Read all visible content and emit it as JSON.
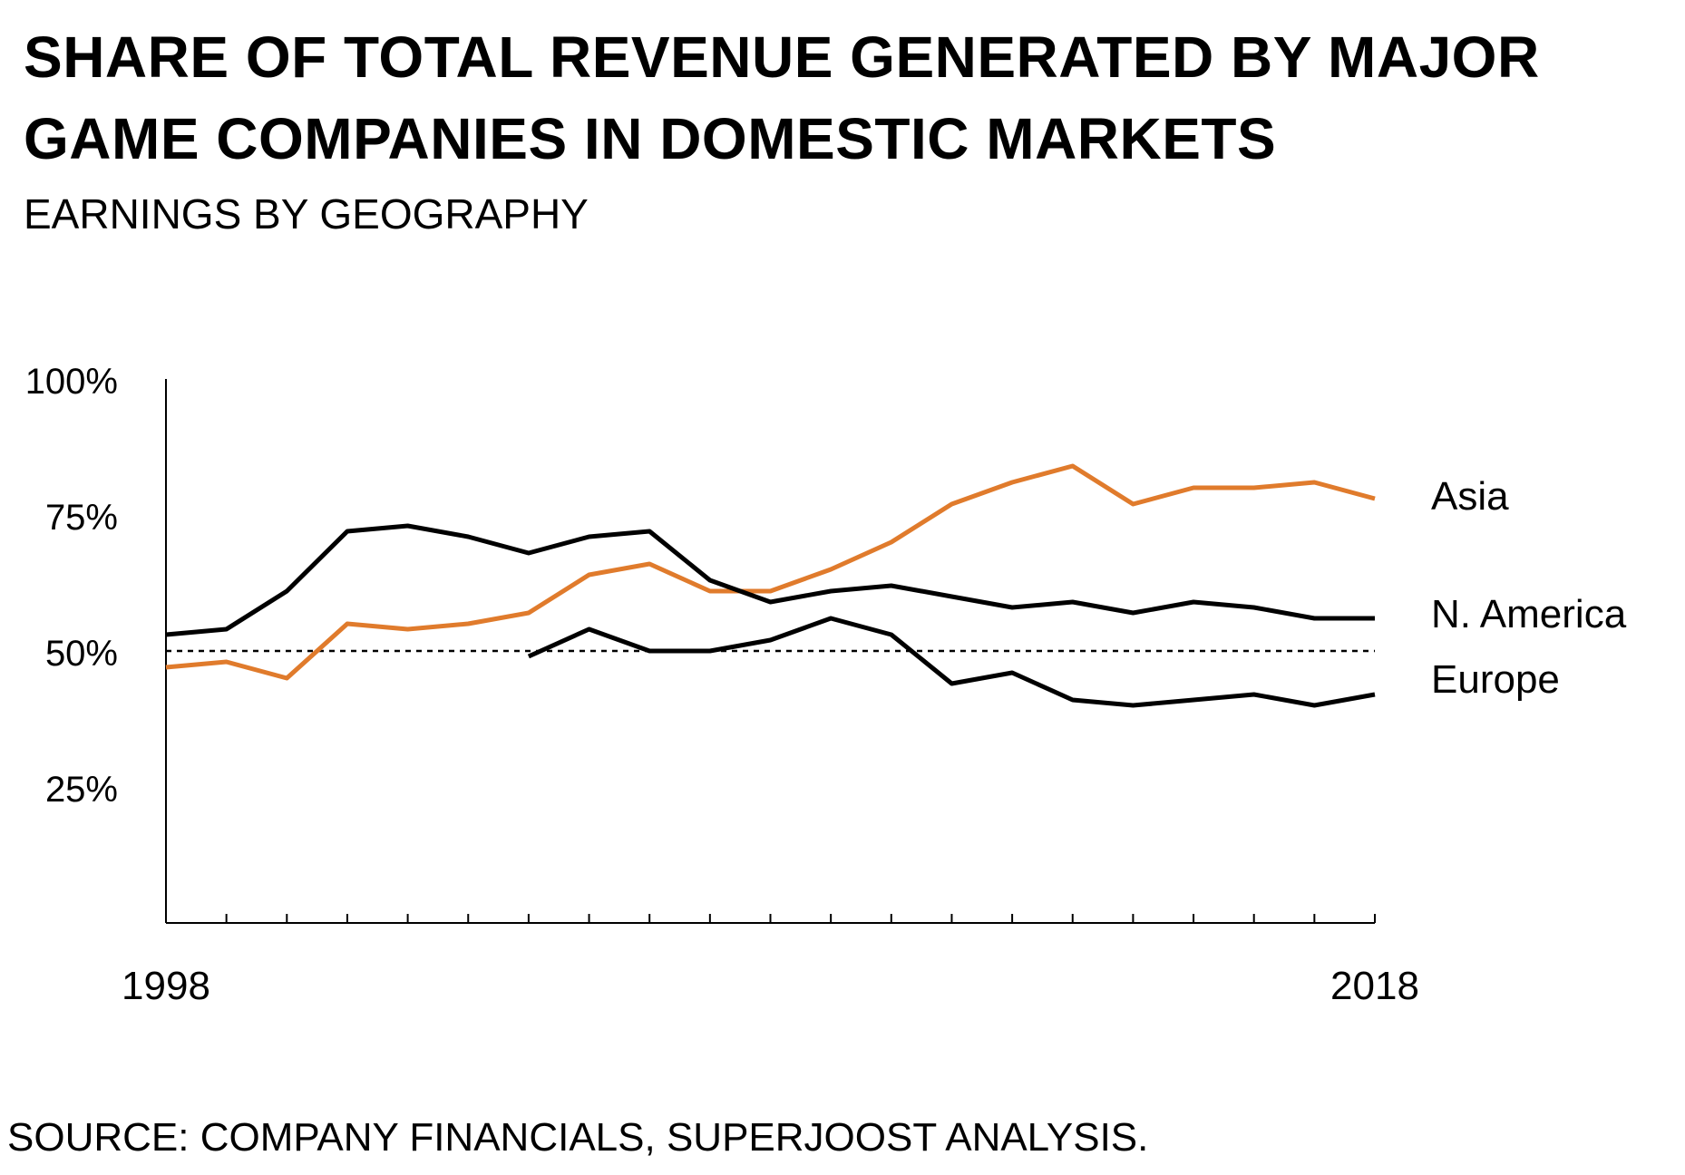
{
  "title": "SHARE OF TOTAL REVENUE GENERATED BY MAJOR GAME COMPANIES IN DOMESTIC MARKETS",
  "subtitle": "EARNINGS BY GEOGRAPHY",
  "source": "SOURCE: COMPANY FINANCIALS, SUPERJOOST ANALYSIS.",
  "colors": {
    "asia": "#E07B2C",
    "north_america": "#000000",
    "europe": "#000000",
    "reference": "#000000",
    "axis": "#000000"
  },
  "chart_data": {
    "type": "line",
    "x": [
      1998,
      1999,
      2000,
      2001,
      2002,
      2003,
      2004,
      2005,
      2006,
      2007,
      2008,
      2009,
      2010,
      2011,
      2012,
      2013,
      2014,
      2015,
      2016,
      2017,
      2018
    ],
    "xticklabels": [
      "1998",
      "2018"
    ],
    "yticks": [
      25,
      50,
      75,
      100
    ],
    "yticklabels": [
      "25%",
      "50%",
      "75%",
      "100%"
    ],
    "ylim": [
      0,
      100
    ],
    "xlim": [
      1998,
      2018
    ],
    "reference_line": 50,
    "grid": false,
    "legend": "inline labels at right end of lines",
    "series": [
      {
        "name": "Asia",
        "color": "#E07B2C",
        "values": [
          47,
          48,
          45,
          55,
          54,
          55,
          57,
          64,
          66,
          61,
          61,
          65,
          70,
          77,
          81,
          84,
          77,
          80,
          80,
          81,
          78
        ]
      },
      {
        "name": "N. America",
        "color": "#000000",
        "values": [
          53,
          54,
          61,
          72,
          73,
          71,
          68,
          71,
          72,
          63,
          59,
          61,
          62,
          60,
          58,
          59,
          57,
          59,
          58,
          56,
          56
        ]
      },
      {
        "name": "Europe",
        "color": "#000000",
        "values": [
          null,
          null,
          null,
          null,
          null,
          null,
          49,
          54,
          50,
          50,
          52,
          56,
          53,
          44,
          46,
          41,
          40,
          41,
          42,
          40,
          42
        ]
      }
    ]
  }
}
